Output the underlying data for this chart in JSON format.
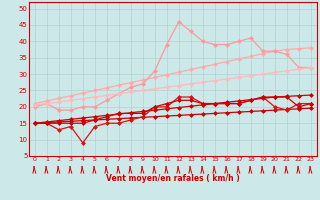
{
  "x": [
    0,
    1,
    2,
    3,
    4,
    5,
    6,
    7,
    8,
    9,
    10,
    11,
    12,
    13,
    14,
    15,
    16,
    17,
    18,
    19,
    20,
    21,
    22,
    23
  ],
  "series": [
    {
      "name": "pink_linear_upper",
      "color": "#ffaaaa",
      "lw": 0.9,
      "ms": 2.5,
      "marker": "D",
      "y": [
        21.0,
        21.8,
        22.6,
        23.4,
        24.2,
        25.0,
        25.8,
        26.6,
        27.4,
        28.2,
        29.0,
        29.8,
        30.6,
        31.4,
        32.2,
        33.0,
        33.8,
        34.6,
        35.4,
        36.2,
        37.0,
        37.5,
        37.8,
        38.0
      ]
    },
    {
      "name": "pink_wavy",
      "color": "#ff9999",
      "lw": 0.9,
      "ms": 2.5,
      "marker": "D",
      "y": [
        20,
        21,
        19,
        19,
        20,
        20,
        22,
        24,
        26,
        27,
        31,
        39,
        46,
        43,
        40,
        39,
        39,
        40,
        41,
        37,
        37,
        36,
        32,
        32
      ]
    },
    {
      "name": "pink_linear_lower",
      "color": "#ffbbbb",
      "lw": 0.9,
      "ms": 2.5,
      "marker": "D",
      "y": [
        20.5,
        21.0,
        21.5,
        22.0,
        22.5,
        23.0,
        23.5,
        24.0,
        24.5,
        25.0,
        25.5,
        26.0,
        26.5,
        27.0,
        27.5,
        28.0,
        28.5,
        29.0,
        29.5,
        30.0,
        30.5,
        31.0,
        31.5,
        32.0
      ]
    },
    {
      "name": "red_linear_upper",
      "color": "#cc0000",
      "lw": 0.9,
      "ms": 2.5,
      "marker": "D",
      "y": [
        15.0,
        15.4,
        15.8,
        16.2,
        16.6,
        17.0,
        17.4,
        17.8,
        18.2,
        18.6,
        19.0,
        19.4,
        19.8,
        20.2,
        20.6,
        21.0,
        21.4,
        21.8,
        22.2,
        22.6,
        23.0,
        23.2,
        23.4,
        23.6
      ]
    },
    {
      "name": "red_linear_lower",
      "color": "#cc0000",
      "lw": 0.9,
      "ms": 2.5,
      "marker": "D",
      "y": [
        15.0,
        15.2,
        15.4,
        15.6,
        15.8,
        16.0,
        16.2,
        16.4,
        16.6,
        16.8,
        17.0,
        17.2,
        17.4,
        17.6,
        17.8,
        18.0,
        18.2,
        18.4,
        18.6,
        18.8,
        19.0,
        19.2,
        19.4,
        19.6
      ]
    },
    {
      "name": "red_wavy",
      "color": "#dd1111",
      "lw": 0.9,
      "ms": 2.5,
      "marker": "D",
      "y": [
        15,
        15,
        13,
        14,
        9,
        14,
        15,
        15,
        16,
        17,
        20,
        20,
        23,
        23,
        21,
        21,
        21,
        21,
        22,
        23,
        20,
        19,
        21,
        21
      ]
    },
    {
      "name": "red_wavy2",
      "color": "#cc0000",
      "lw": 0.9,
      "ms": 2.5,
      "marker": "D",
      "y": [
        15,
        15,
        15,
        15,
        15,
        16,
        17,
        18,
        18,
        18,
        20,
        21,
        22,
        22,
        21,
        21,
        21,
        21,
        22,
        23,
        23,
        23,
        20,
        21
      ]
    }
  ],
  "xlim": [
    -0.5,
    23.5
  ],
  "ylim": [
    5,
    52
  ],
  "yticks": [
    5,
    10,
    15,
    20,
    25,
    30,
    35,
    40,
    45,
    50
  ],
  "xticks": [
    0,
    1,
    2,
    3,
    4,
    5,
    6,
    7,
    8,
    9,
    10,
    11,
    12,
    13,
    14,
    15,
    16,
    17,
    18,
    19,
    20,
    21,
    22,
    23
  ],
  "xlabel": "Vent moyen/en rafales ( km/h )",
  "bg_color": "#cce8e8",
  "grid_color": "#aacccc",
  "tick_color": "#cc0000",
  "label_color": "#cc0000"
}
